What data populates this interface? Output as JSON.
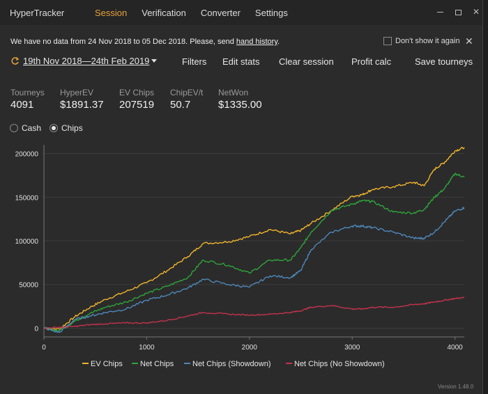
{
  "window": {
    "app_title": "HyperTracker",
    "tabs": [
      {
        "label": "Session",
        "active": true
      },
      {
        "label": "Verification",
        "active": false
      },
      {
        "label": "Converter",
        "active": false
      },
      {
        "label": "Settings",
        "active": false
      }
    ],
    "accent_color": "#e8a33a"
  },
  "notice": {
    "text_before": "We have no data from 24 Nov 2018 to 05 Dec 2018. Please, send ",
    "link_text": "hand history",
    "text_after": ".",
    "dont_show_label": "Don't show it again"
  },
  "toolbar": {
    "date_range": "19th Nov 2018—24th Feb 2019",
    "filters": "Filters",
    "edit_stats": "Edit stats",
    "clear_session": "Clear session",
    "profit_calc": "Profit calc",
    "save_tourneys": "Save tourneys"
  },
  "stats": [
    {
      "label": "Tourneys",
      "value": "4091"
    },
    {
      "label": "HyperEV",
      "value": "$1891.37"
    },
    {
      "label": "EV Chips",
      "value": "207519"
    },
    {
      "label": "ChipEV/t",
      "value": "50.7"
    },
    {
      "label": "NetWon",
      "value": "$1335.00"
    }
  ],
  "mode": {
    "options": [
      "Cash",
      "Chips"
    ],
    "selected": "Chips"
  },
  "chart_data": {
    "type": "line",
    "x_ticks": [
      0,
      1000,
      2000,
      3000,
      4000
    ],
    "y_ticks": [
      0,
      50000,
      100000,
      150000,
      200000
    ],
    "y_tick_labels": [
      "0",
      "50000",
      "100000",
      "150000",
      "200000"
    ],
    "xlim": [
      0,
      4091
    ],
    "ylim": [
      -10000,
      210000
    ],
    "grid": true,
    "legend": "bottom",
    "series": [
      {
        "name": "EV Chips",
        "color": "#f0b42c",
        "x": [
          0,
          150,
          300,
          450,
          600,
          800,
          1000,
          1200,
          1400,
          1550,
          1800,
          2000,
          2200,
          2400,
          2500,
          2600,
          2800,
          3000,
          3100,
          3200,
          3400,
          3600,
          3700,
          3800,
          3900,
          4000,
          4091
        ],
        "y": [
          0,
          -1000,
          13000,
          24000,
          33000,
          42000,
          52000,
          66000,
          82000,
          97000,
          99000,
          105000,
          113000,
          108000,
          112000,
          120000,
          135000,
          151000,
          153000,
          159000,
          162000,
          167000,
          163000,
          182000,
          190000,
          203000,
          207000
        ]
      },
      {
        "name": "Net Chips",
        "color": "#2fa33a",
        "x": [
          0,
          150,
          300,
          450,
          600,
          800,
          1000,
          1200,
          1400,
          1550,
          1800,
          2000,
          2200,
          2400,
          2500,
          2600,
          2800,
          3000,
          3100,
          3200,
          3400,
          3600,
          3700,
          3800,
          3900,
          4000,
          4091
        ],
        "y": [
          0,
          -3000,
          8000,
          17000,
          24000,
          30000,
          40000,
          48000,
          58000,
          78000,
          72000,
          63000,
          78000,
          78000,
          92000,
          110000,
          135000,
          142000,
          146000,
          145000,
          133000,
          132000,
          136000,
          150000,
          160000,
          177000,
          173000
        ]
      },
      {
        "name": "Net Chips (Showdown)",
        "color": "#4e86b8",
        "x": [
          0,
          150,
          300,
          450,
          600,
          800,
          1000,
          1200,
          1400,
          1550,
          1800,
          2000,
          2200,
          2400,
          2500,
          2600,
          2800,
          3000,
          3100,
          3200,
          3400,
          3600,
          3700,
          3800,
          3900,
          4000,
          4091
        ],
        "y": [
          0,
          -5000,
          10000,
          14000,
          18000,
          22000,
          32000,
          38000,
          46000,
          56000,
          50000,
          47000,
          60000,
          58000,
          66000,
          90000,
          110000,
          117000,
          117000,
          115000,
          110000,
          103000,
          103000,
          110000,
          122000,
          134000,
          138000
        ]
      },
      {
        "name": "Net Chips (No Showdown)",
        "color": "#c2334e",
        "x": [
          0,
          150,
          300,
          450,
          600,
          800,
          1000,
          1200,
          1400,
          1550,
          1800,
          2000,
          2200,
          2400,
          2500,
          2600,
          2800,
          3000,
          3100,
          3200,
          3400,
          3600,
          3700,
          3800,
          3900,
          4000,
          4091
        ],
        "y": [
          0,
          1000,
          2000,
          4000,
          5000,
          6000,
          6000,
          9000,
          14000,
          18000,
          16000,
          15000,
          16000,
          18000,
          20000,
          24000,
          26000,
          22000,
          22000,
          24000,
          24000,
          27000,
          28000,
          30000,
          32000,
          34000,
          35000
        ]
      }
    ]
  },
  "version": "Version 1.48.0"
}
